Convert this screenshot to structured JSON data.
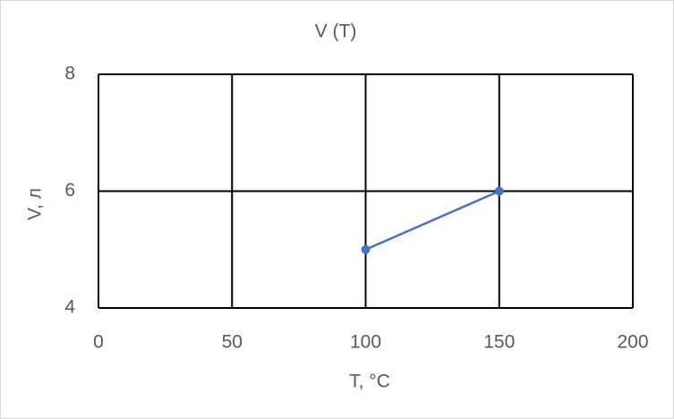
{
  "chart_data": {
    "type": "line",
    "title": "V (T)",
    "x_label": "T, °C",
    "y_label": "V, л",
    "series": [
      {
        "x": [
          100,
          150
        ],
        "values": [
          5,
          6
        ],
        "color": "#4472c4"
      }
    ],
    "xlim": [
      0,
      200
    ],
    "xticks": [
      0,
      50,
      100,
      150,
      200
    ],
    "ylim": [
      4,
      8
    ],
    "yticks": [
      4,
      6,
      8
    ],
    "grid": true
  }
}
